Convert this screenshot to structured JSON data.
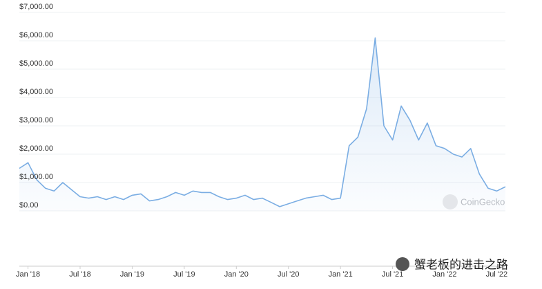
{
  "chart_data": {
    "type": "area-line",
    "x": [
      "2017-12",
      "2018-01",
      "2018-02",
      "2018-03",
      "2018-04",
      "2018-05",
      "2018-06",
      "2018-07",
      "2018-08",
      "2018-09",
      "2018-10",
      "2018-11",
      "2018-12",
      "2019-01",
      "2019-02",
      "2019-03",
      "2019-04",
      "2019-05",
      "2019-06",
      "2019-07",
      "2019-08",
      "2019-09",
      "2019-10",
      "2019-11",
      "2019-12",
      "2020-01",
      "2020-02",
      "2020-03",
      "2020-04",
      "2020-05",
      "2020-06",
      "2020-07",
      "2020-08",
      "2020-09",
      "2020-10",
      "2020-11",
      "2020-12",
      "2021-01",
      "2021-02",
      "2021-03",
      "2021-04",
      "2021-05",
      "2021-06",
      "2021-07",
      "2021-08",
      "2021-09",
      "2021-10",
      "2021-11",
      "2021-12",
      "2022-01",
      "2022-02",
      "2022-03",
      "2022-04",
      "2022-05",
      "2022-06",
      "2022-07",
      "2022-08"
    ],
    "series": [
      {
        "color": "#7aade3",
        "values": [
          1500,
          1700,
          1100,
          800,
          700,
          1000,
          750,
          500,
          450,
          500,
          400,
          500,
          400,
          550,
          600,
          350,
          400,
          500,
          650,
          550,
          700,
          650,
          650,
          500,
          400,
          450,
          550,
          400,
          450,
          300,
          150,
          250,
          350,
          450,
          500,
          550,
          400,
          450,
          2300,
          2600,
          3600,
          6100,
          3000,
          2500,
          3700,
          3200,
          2500,
          3100,
          2300,
          2200,
          2000,
          1900,
          2200,
          1300,
          800,
          700,
          850
        ]
      }
    ],
    "xlim": [
      "2017-12",
      "2022-08"
    ],
    "xticks": [
      {
        "value": "2018-01",
        "label": "Jan '18"
      },
      {
        "value": "2018-07",
        "label": "Jul '18"
      },
      {
        "value": "2019-01",
        "label": "Jan '19"
      },
      {
        "value": "2019-07",
        "label": "Jul '19"
      },
      {
        "value": "2020-01",
        "label": "Jan '20"
      },
      {
        "value": "2020-07",
        "label": "Jul '20"
      },
      {
        "value": "2021-01",
        "label": "Jan '21"
      },
      {
        "value": "2021-07",
        "label": "Jul '21"
      },
      {
        "value": "2022-01",
        "label": "Jan '22"
      },
      {
        "value": "2022-07",
        "label": "Jul '22"
      }
    ],
    "ylim": [
      0,
      7000
    ],
    "yticks": [
      {
        "value": 0,
        "label": "$0.00"
      },
      {
        "value": 1000,
        "label": "$1,000.00"
      },
      {
        "value": 2000,
        "label": "$2,000.00"
      },
      {
        "value": 3000,
        "label": "$3,000.00"
      },
      {
        "value": 4000,
        "label": "$4,000.00"
      },
      {
        "value": 5000,
        "label": "$5,000.00"
      },
      {
        "value": 6000,
        "label": "$6,000.00"
      },
      {
        "value": 7000,
        "label": "$7,000.00"
      }
    ],
    "grid": true,
    "watermark": "CoinGecko",
    "overlay_text": "蟹老板的进击之路"
  }
}
